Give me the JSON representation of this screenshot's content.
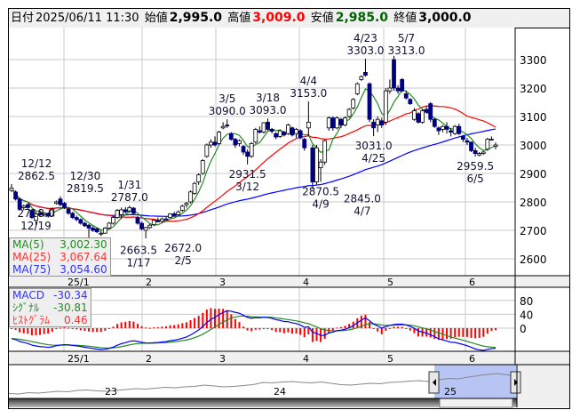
{
  "header": {
    "date_label": "日付",
    "datetime": "2025/06/11 11:30",
    "open_label": "始値",
    "open": "2,995.0",
    "high_label": "高値",
    "high": "3,009.0",
    "low_label": "安値",
    "low": "2,985.0",
    "close_label": "終値",
    "close": "3,000.0"
  },
  "colors": {
    "up_fill": "#ffffff",
    "down_fill": "#000080",
    "ma5": "#228b22",
    "ma25": "#ff0000",
    "ma75": "#0000ff",
    "macd": "#0000ff",
    "signal": "#228b22",
    "histogram": "#ff0000",
    "high_value": "#ff0000",
    "low_value": "#006400",
    "grid": "#c8c8c8",
    "selection": "#b8c4f4"
  },
  "ma_legend": [
    {
      "label": "MA(5)",
      "value": "3,002.30",
      "color": "#228b22"
    },
    {
      "label": "MA(25)",
      "value": "3,067.64",
      "color": "#ff3333"
    },
    {
      "label": "MA(75)",
      "value": "3,054.60",
      "color": "#3333ff"
    }
  ],
  "macd_legend": [
    {
      "label": "MACD",
      "value": "-30.34",
      "color": "#3333ff"
    },
    {
      "label": "ｼｸﾞﾅﾙ",
      "value": "-30.81",
      "color": "#228b22"
    },
    {
      "label": "ﾋｽﾄｸﾞﾗﾑ",
      "value": "0.46",
      "color": "#ff3333"
    }
  ],
  "chart_data": {
    "type": "candlestick",
    "price_ticks": [
      3300,
      3200,
      3100,
      3000,
      2900,
      2800,
      2700,
      2600
    ],
    "ylim": [
      2560,
      3400
    ],
    "month_labels": [
      "25/1",
      "2",
      "3",
      "4",
      "5",
      "6"
    ],
    "ma_periods": [
      5,
      25,
      75
    ],
    "macd_ticks": [
      80,
      40,
      0
    ],
    "navigator_labels": [
      "23",
      "24",
      "25"
    ],
    "ohlc": [
      [
        2840,
        2862.5,
        2835,
        2848
      ],
      [
        2835,
        2840,
        2805,
        2810
      ],
      [
        2810,
        2815,
        2770,
        2775
      ],
      [
        2780,
        2790,
        2770,
        2785
      ],
      [
        2790,
        2795,
        2775,
        2780
      ],
      [
        2770,
        2775,
        2740,
        2745
      ],
      [
        2735,
        2765,
        2718,
        2758
      ],
      [
        2760,
        2770,
        2750,
        2755
      ],
      [
        2755,
        2765,
        2748,
        2760
      ],
      [
        2760,
        2762,
        2745,
        2750
      ],
      [
        2750,
        2780,
        2748,
        2775
      ],
      [
        2795,
        2805,
        2790,
        2800
      ],
      [
        2810,
        2819.5,
        2785,
        2790
      ],
      [
        2795,
        2800,
        2775,
        2780
      ],
      [
        2775,
        2780,
        2755,
        2760
      ],
      [
        2760,
        2765,
        2740,
        2745
      ],
      [
        2745,
        2752,
        2732,
        2738
      ],
      [
        2738,
        2742,
        2720,
        2725
      ],
      [
        2725,
        2730,
        2712,
        2716
      ],
      [
        2718,
        2722,
        2663.5,
        2708
      ],
      [
        2708,
        2715,
        2695,
        2700
      ],
      [
        2705,
        2710,
        2690,
        2695
      ],
      [
        2690,
        2700,
        2680,
        2690
      ],
      [
        2690,
        2712,
        2688,
        2708
      ],
      [
        2708,
        2730,
        2705,
        2725
      ],
      [
        2725,
        2750,
        2720,
        2745
      ],
      [
        2745,
        2775,
        2740,
        2770
      ],
      [
        2755,
        2780,
        2740,
        2772
      ],
      [
        2772,
        2782,
        2760,
        2765
      ],
      [
        2768,
        2787,
        2762,
        2780
      ],
      [
        2778,
        2782,
        2755,
        2760
      ],
      [
        2745,
        2750,
        2720,
        2725
      ],
      [
        2725,
        2730,
        2700,
        2705
      ],
      [
        2700,
        2712,
        2672,
        2710
      ],
      [
        2710,
        2722,
        2705,
        2718
      ],
      [
        2720,
        2740,
        2715,
        2735
      ],
      [
        2735,
        2745,
        2728,
        2730
      ],
      [
        2732,
        2745,
        2725,
        2740
      ],
      [
        2740,
        2748,
        2735,
        2738
      ],
      [
        2745,
        2760,
        2742,
        2758
      ],
      [
        2758,
        2765,
        2750,
        2752
      ],
      [
        2755,
        2770,
        2750,
        2765
      ],
      [
        2770,
        2790,
        2765,
        2785
      ],
      [
        2790,
        2800,
        2780,
        2795
      ],
      [
        2800,
        2840,
        2795,
        2835
      ],
      [
        2830,
        2870,
        2825,
        2865
      ],
      [
        2870,
        2900,
        2860,
        2895
      ],
      [
        2900,
        2950,
        2895,
        2945
      ],
      [
        2960,
        3005,
        2955,
        3000
      ],
      [
        3000,
        3020,
        2990,
        3010
      ],
      [
        3010,
        3030,
        2995,
        3000
      ],
      [
        3005,
        3050,
        3000,
        3045
      ],
      [
        3060,
        3080,
        3055,
        3065
      ],
      [
        3070,
        3090,
        3060,
        3068
      ],
      [
        3040,
        3045,
        3015,
        3020
      ],
      [
        3020,
        3025,
        2990,
        3000
      ],
      [
        3005,
        3020,
        2995,
        3015
      ],
      [
        2995,
        3000,
        2965,
        2975
      ],
      [
        2975,
        2985,
        2931.5,
        2960
      ],
      [
        2960,
        3010,
        2955,
        3005
      ],
      [
        3010,
        3060,
        3005,
        3055
      ],
      [
        3050,
        3065,
        3040,
        3045
      ],
      [
        3045,
        3080,
        3040,
        3078
      ],
      [
        3080,
        3093,
        3050,
        3055
      ],
      [
        3055,
        3060,
        3040,
        3048
      ],
      [
        3040,
        3045,
        3020,
        3028
      ],
      [
        3030,
        3055,
        3025,
        3050
      ],
      [
        3045,
        3050,
        3030,
        3035
      ],
      [
        3040,
        3075,
        3035,
        3070
      ],
      [
        3060,
        3065,
        3030,
        3035
      ],
      [
        3040,
        3060,
        3025,
        3055
      ],
      [
        3050,
        3055,
        3020,
        3025
      ],
      [
        3020,
        3025,
        2980,
        2990
      ],
      [
        3060,
        3153,
        3030,
        3080
      ],
      [
        2990,
        3000,
        2845,
        2870
      ],
      [
        2870,
        3000,
        2860,
        2990
      ],
      [
        2920,
        2950,
        2870.5,
        2940
      ],
      [
        2940,
        3020,
        2930,
        3015
      ],
      [
        3060,
        3100,
        3050,
        3095
      ],
      [
        3095,
        3100,
        3050,
        3060
      ],
      [
        3060,
        3100,
        3055,
        3095
      ],
      [
        3090,
        3095,
        3060,
        3070
      ],
      [
        3070,
        3100,
        3065,
        3095
      ],
      [
        3100,
        3130,
        3095,
        3125
      ],
      [
        3130,
        3165,
        3125,
        3160
      ],
      [
        3180,
        3220,
        3175,
        3215
      ],
      [
        3230,
        3245,
        3225,
        3240
      ],
      [
        3255,
        3303,
        3240,
        3245
      ],
      [
        3215,
        3220,
        3080,
        3090
      ],
      [
        3080,
        3090,
        3031,
        3060
      ],
      [
        3070,
        3100,
        3045,
        3090
      ],
      [
        3085,
        3095,
        3060,
        3070
      ],
      [
        3080,
        3200,
        3070,
        3190
      ],
      [
        3190,
        3230,
        3180,
        3200
      ],
      [
        3300,
        3313,
        3190,
        3200
      ],
      [
        3200,
        3210,
        3180,
        3190
      ],
      [
        3230,
        3235,
        3185,
        3190
      ],
      [
        3180,
        3190,
        3160,
        3165
      ],
      [
        3160,
        3165,
        3140,
        3145
      ],
      [
        3090,
        3130,
        3085,
        3120
      ],
      [
        3110,
        3115,
        3075,
        3080
      ],
      [
        3080,
        3125,
        3075,
        3120
      ],
      [
        3125,
        3135,
        3110,
        3115
      ],
      [
        3145,
        3150,
        3080,
        3090
      ],
      [
        3090,
        3095,
        3060,
        3065
      ],
      [
        3060,
        3065,
        3035,
        3050
      ],
      [
        3055,
        3070,
        3045,
        3065
      ],
      [
        3065,
        3080,
        3040,
        3055
      ],
      [
        3050,
        3060,
        3030,
        3045
      ],
      [
        3040,
        3070,
        3035,
        3065
      ],
      [
        3065,
        3075,
        3035,
        3040
      ],
      [
        3030,
        3035,
        3010,
        3020
      ],
      [
        3015,
        3025,
        3000,
        3010
      ],
      [
        3010,
        3012,
        2975,
        2980
      ],
      [
        2980,
        2990,
        2959.5,
        2970
      ],
      [
        2965,
        2975,
        2960,
        2970
      ],
      [
        2970,
        2980,
        2965,
        2975
      ],
      [
        2985,
        3025,
        2980,
        3020
      ],
      [
        3020,
        3030,
        3015,
        3020
      ],
      [
        2995,
        3009,
        2985,
        3000
      ]
    ],
    "annotations": [
      {
        "index": 0,
        "price": 2862.5,
        "text": "2862.5",
        "date": "12/12",
        "pos": "above"
      },
      {
        "index": 12,
        "price": 2819.5,
        "text": "2819.5",
        "date": "12/30",
        "pos": "above"
      },
      {
        "index": 6,
        "price": 2718,
        "text": "2718.0",
        "date": "12/19",
        "pos": "below"
      },
      {
        "index": 19,
        "price": 2663.5,
        "text": "2663.5",
        "date": "1/17",
        "pos": "below"
      },
      {
        "index": 29,
        "price": 2787,
        "text": "2787.0",
        "date": "1/31",
        "pos": "above"
      },
      {
        "index": 33,
        "price": 2672,
        "text": "2672.0",
        "date": "2/5",
        "pos": "below"
      },
      {
        "index": 53,
        "price": 3090,
        "text": "3090.0",
        "date": "3/5",
        "pos": "above"
      },
      {
        "index": 63,
        "price": 3093,
        "text": "3093.0",
        "date": "3/18",
        "pos": "above"
      },
      {
        "index": 58,
        "price": 2931.5,
        "text": "2931.5",
        "date": "3/12",
        "pos": "below"
      },
      {
        "index": 73,
        "price": 3153,
        "text": "3153.0",
        "date": "4/4",
        "pos": "above"
      },
      {
        "index": 76,
        "price": 2870.5,
        "text": "2870.5",
        "date": "4/9",
        "pos": "below"
      },
      {
        "index": 74,
        "price": 2845,
        "text": "2845.0",
        "date": "4/7",
        "pos": "below"
      },
      {
        "index": 87,
        "price": 3303,
        "text": "3303.0",
        "date": "4/23",
        "pos": "above"
      },
      {
        "index": 89,
        "price": 3031,
        "text": "3031.0",
        "date": "4/25",
        "pos": "below"
      },
      {
        "index": 94,
        "price": 3313,
        "text": "3313.0",
        "date": "5/7",
        "pos": "above"
      },
      {
        "index": 114,
        "price": 2959.5,
        "text": "2959.5",
        "date": "6/5",
        "pos": "below"
      }
    ],
    "navigator_history": [
      2450,
      2440,
      2470,
      2460,
      2480,
      2500,
      2490,
      2520,
      2530,
      2510,
      2500,
      2520,
      2540,
      2560,
      2550,
      2570,
      2590,
      2580,
      2600,
      2610,
      2640,
      2620,
      2600,
      2610,
      2630,
      2650,
      2700,
      2690,
      2710,
      2720,
      2700,
      2690,
      2710,
      2680,
      2650,
      2640,
      2660,
      2680,
      2670,
      2700,
      2710,
      2730,
      2740,
      2720,
      2760,
      2790,
      2780,
      2820,
      2850,
      2880,
      2900,
      2870,
      2840
    ]
  }
}
